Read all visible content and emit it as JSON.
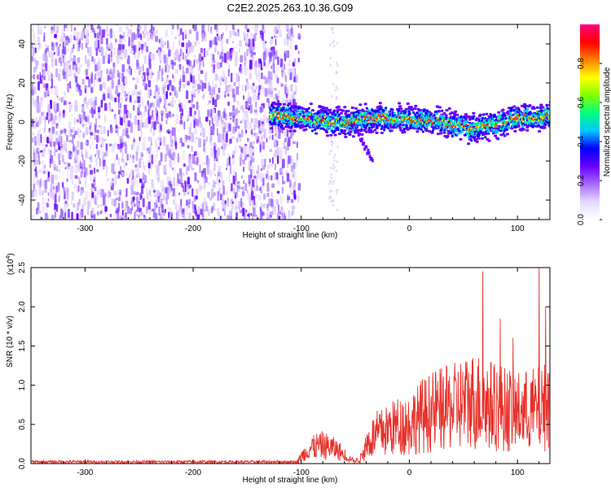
{
  "title": "C2E2.2025.263.10.36.G09",
  "chart_data": [
    {
      "type": "heatmap",
      "xlabel": "Height of straight line (km)",
      "ylabel": "Frequency (Hz)",
      "xlim": [
        -350,
        130
      ],
      "ylim": [
        -50,
        50
      ],
      "xticks": [
        -300,
        -200,
        -100,
        0,
        100
      ],
      "yticks": [
        -40,
        -20,
        0,
        20,
        40
      ],
      "colorbar": {
        "label": "Normalized spectral amplitude",
        "range": [
          0,
          1
        ],
        "ticks": [
          "0.0",
          "0.2",
          "0.4",
          "0.6",
          "0.8"
        ],
        "tick_values": [
          0,
          0.2,
          0.4,
          0.6,
          0.8
        ],
        "colormap": [
          "#ffffff",
          "#e6d9ff",
          "#a66bff",
          "#6a00ff",
          "#0000ff",
          "#00c8ff",
          "#00ff80",
          "#80ff00",
          "#ffff00",
          "#ff8000",
          "#ff0000",
          "#ff0080"
        ]
      },
      "noise_region_x": [
        -350,
        -115
      ],
      "signal_band": {
        "x": [
          -130,
          -110,
          -90,
          -75,
          -60,
          -50,
          -40,
          -20,
          0,
          20,
          40,
          60,
          80,
          100,
          120,
          130
        ],
        "center_freq": [
          5,
          3,
          2,
          1,
          0,
          1,
          3,
          2,
          2,
          1,
          -1,
          -3,
          0,
          3,
          3,
          4
        ]
      }
    },
    {
      "type": "line",
      "xlabel": "Height of straight line (km)",
      "ylabel": "SNR (10 * v/v)",
      "y_multiplier": "(x10",
      "y_multiplier_exp": "4",
      "xlim": [
        -350,
        130
      ],
      "ylim": [
        0,
        2.5
      ],
      "xticks": [
        -300,
        -200,
        -100,
        0,
        100
      ],
      "yticks": [
        "0.0",
        "0.5",
        "1.0",
        "1.5",
        "2.0",
        "2.5"
      ],
      "ytick_values": [
        0,
        0.5,
        1.0,
        1.5,
        2.0,
        2.5
      ],
      "series": [
        {
          "name": "SNR",
          "color": "#e8302a",
          "envelope": {
            "x": [
              -350,
              -105,
              -100,
              -90,
              -80,
              -70,
              -60,
              -50,
              -45,
              -40,
              -30,
              -20,
              -10,
              0,
              10,
              20,
              30,
              40,
              50,
              60,
              70,
              80,
              90,
              100,
              110,
              120,
              125,
              130
            ],
            "y": [
              0.02,
              0.02,
              0.12,
              0.3,
              0.32,
              0.28,
              0.15,
              0.04,
              0.1,
              0.35,
              0.55,
              0.62,
              0.7,
              0.72,
              0.85,
              0.95,
              0.98,
              1.02,
              1.1,
              1.15,
              1.1,
              1.05,
              1.0,
              0.95,
              0.95,
              1.0,
              1.05,
              1.1
            ]
          },
          "peaks": [
            {
              "x": 68,
              "y": 2.45
            },
            {
              "x": 120,
              "y": 2.5
            },
            {
              "x": 84,
              "y": 1.85
            },
            {
              "x": 126,
              "y": 2.0
            },
            {
              "x": 96,
              "y": 1.6
            }
          ]
        }
      ]
    }
  ]
}
